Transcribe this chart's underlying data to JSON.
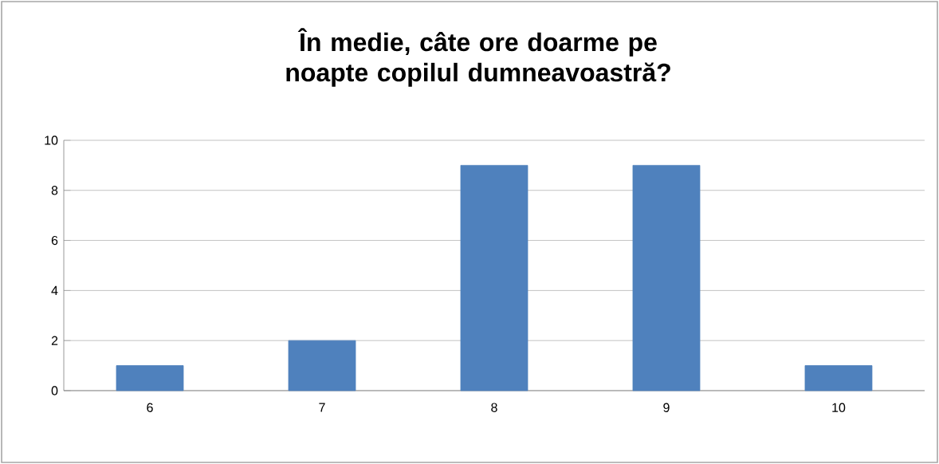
{
  "chart_data": {
    "type": "bar",
    "title": "În medie, câte ore doarme pe noapte copilul dumneavoastră?",
    "categories": [
      "6",
      "7",
      "8",
      "9",
      "10"
    ],
    "values": [
      1,
      2,
      9,
      9,
      1
    ],
    "color": "#4f81bd",
    "ylim": [
      0,
      10
    ],
    "yticks": [
      0,
      2,
      4,
      6,
      8,
      10
    ],
    "grid": "y"
  }
}
